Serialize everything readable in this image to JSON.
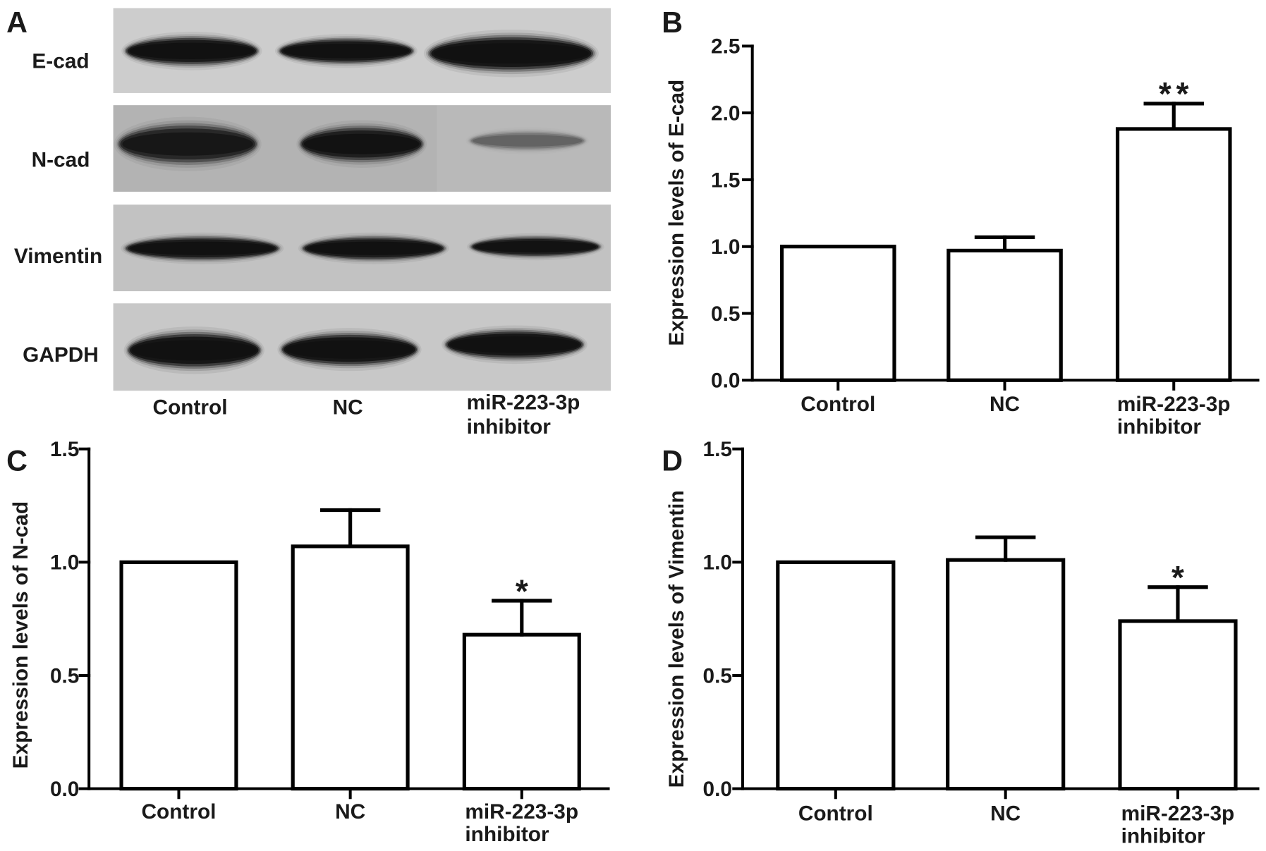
{
  "colors": {
    "bar_fill": "#ffffff",
    "bar_stroke": "#000000"
  },
  "panel_a": {
    "panel_label": "A",
    "rows": [
      "E-cad",
      "N-cad",
      "Vimentin",
      "GAPDH"
    ],
    "lanes": [
      [
        "Control"
      ],
      [
        "NC"
      ],
      [
        "miR-223-3p",
        "inhibitor"
      ]
    ]
  },
  "chart_data": [
    {
      "panel_label": "B",
      "type": "bar",
      "categories": [
        [
          "Control"
        ],
        [
          "NC"
        ],
        [
          "miR-223-3p",
          "inhibitor"
        ]
      ],
      "values": [
        1.0,
        0.97,
        1.88
      ],
      "error": [
        0,
        0.1,
        0.19
      ],
      "annotations": [
        {
          "category_index": 2,
          "text": "**"
        }
      ],
      "ylabel": "Expression levels of E-cad",
      "ylim": [
        0,
        2.5
      ],
      "ytick_labels": [
        "0.0",
        "0.5",
        "1.0",
        "1.5",
        "2.0",
        "2.5"
      ],
      "grid": false
    },
    {
      "panel_label": "C",
      "type": "bar",
      "categories": [
        [
          "Control"
        ],
        [
          "NC"
        ],
        [
          "miR-223-3p",
          "inhibitor"
        ]
      ],
      "values": [
        1.0,
        1.07,
        0.68
      ],
      "error": [
        0,
        0.16,
        0.15
      ],
      "annotations": [
        {
          "category_index": 2,
          "text": "*"
        }
      ],
      "ylabel": "Expression levels of N-cad",
      "ylim": [
        0,
        1.5
      ],
      "ytick_labels": [
        "0.0",
        "0.5",
        "1.0",
        "1.5"
      ],
      "grid": false
    },
    {
      "panel_label": "D",
      "type": "bar",
      "categories": [
        [
          "Control"
        ],
        [
          "NC"
        ],
        [
          "miR-223-3p",
          "inhibitor"
        ]
      ],
      "values": [
        1.0,
        1.01,
        0.74
      ],
      "error": [
        0,
        0.1,
        0.15
      ],
      "annotations": [
        {
          "category_index": 2,
          "text": "*"
        }
      ],
      "ylabel": "Expression levels of Vimentin",
      "ylim": [
        0,
        1.5
      ],
      "ytick_labels": [
        "0.0",
        "0.5",
        "1.0",
        "1.5"
      ],
      "grid": false
    }
  ]
}
